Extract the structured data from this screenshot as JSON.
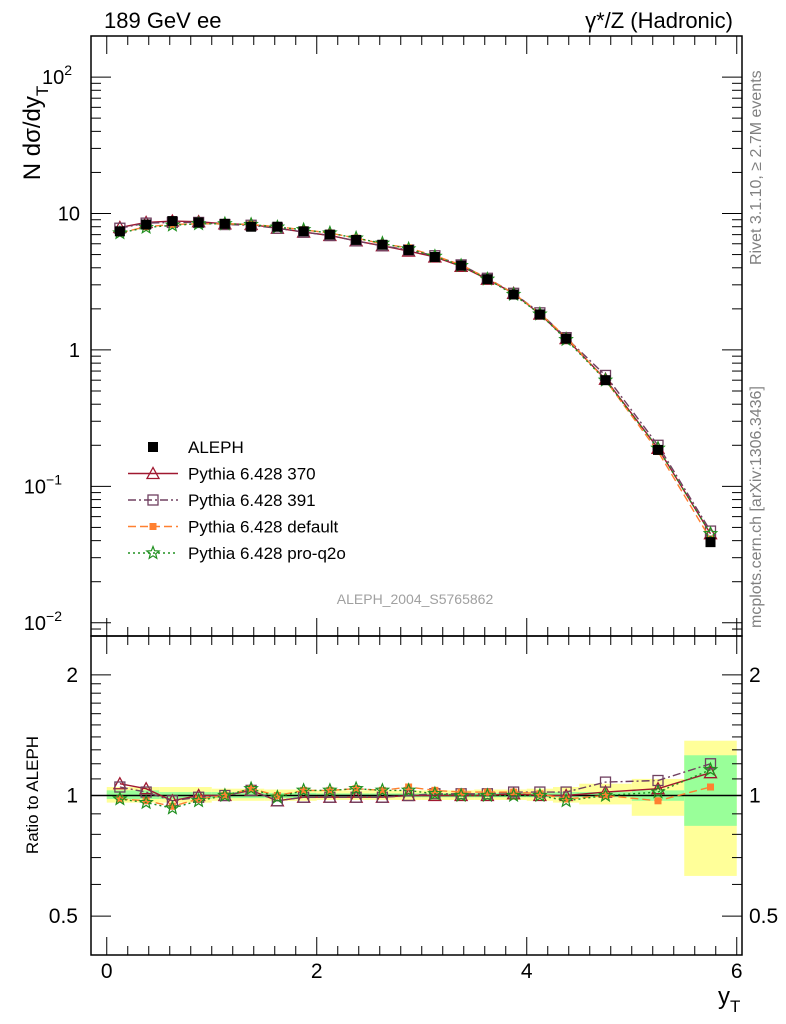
{
  "header": {
    "left": "189 GeV ee",
    "right": "γ*/Z (Hadronic)"
  },
  "side_text": {
    "rivet": "Rivet 3.1.10, ≥ 2.7M events",
    "mcplots": "mcplots.cern.ch [arXiv:1306.3436]"
  },
  "watermark": "ALEPH_2004_S5765862",
  "chart_data": [
    {
      "type": "line",
      "panel": "main",
      "ylabel": "N dσ/dy_T",
      "yscale": "log",
      "ylim": [
        0.008,
        200
      ],
      "xlim": [
        -0.15,
        6.05
      ],
      "y_ticks": [
        {
          "value": 0.01,
          "base": "10",
          "exp": "−2"
        },
        {
          "value": 0.1,
          "base": "10",
          "exp": "−1"
        },
        {
          "value": 1,
          "base": "1",
          "exp": ""
        },
        {
          "value": 10,
          "base": "10",
          "exp": ""
        },
        {
          "value": 100,
          "base": "10",
          "exp": "2"
        }
      ],
      "x": [
        0.125,
        0.375,
        0.625,
        0.875,
        1.125,
        1.375,
        1.625,
        1.875,
        2.125,
        2.375,
        2.625,
        2.875,
        3.125,
        3.375,
        3.625,
        3.875,
        4.125,
        4.375,
        4.75,
        5.25,
        5.75
      ],
      "series": [
        {
          "name": "ALEPH",
          "color": "#000000",
          "marker": "square-filled",
          "dash": "",
          "values": [
            7.4,
            8.3,
            8.8,
            8.6,
            8.4,
            8.0,
            8.0,
            7.4,
            7.0,
            6.4,
            5.9,
            5.4,
            4.8,
            4.15,
            3.3,
            2.55,
            1.82,
            1.21,
            0.6,
            0.185,
            0.039
          ]
        },
        {
          "name": "Pythia 6.428 370",
          "color": "#a01830",
          "marker": "triangle-open",
          "dash": "",
          "values": [
            7.9,
            8.6,
            8.8,
            8.7,
            8.4,
            8.3,
            7.8,
            7.3,
            6.9,
            6.3,
            5.8,
            5.3,
            4.8,
            4.1,
            3.3,
            2.6,
            1.83,
            1.21,
            0.61,
            0.19,
            0.045
          ]
        },
        {
          "name": "Pythia 6.428 391",
          "color": "#704060",
          "marker": "square-open",
          "dash": "8,3,2,3",
          "values": [
            7.8,
            8.5,
            8.6,
            8.6,
            8.3,
            8.2,
            7.8,
            7.3,
            6.9,
            6.3,
            5.8,
            5.4,
            4.9,
            4.2,
            3.35,
            2.6,
            1.87,
            1.23,
            0.65,
            0.2,
            0.047
          ]
        },
        {
          "name": "Pythia 6.428 default",
          "color": "#ff8030",
          "marker": "square-filled-small",
          "dash": "8,4",
          "values": [
            7.2,
            8.0,
            8.3,
            8.4,
            8.4,
            8.3,
            8.0,
            7.6,
            7.2,
            6.6,
            6.0,
            5.6,
            4.9,
            4.2,
            3.35,
            2.6,
            1.85,
            1.24,
            0.6,
            0.18,
            0.041
          ]
        },
        {
          "name": "Pythia 6.428 pro-q2o",
          "color": "#209020",
          "marker": "star",
          "dash": "2,3",
          "values": [
            7.2,
            7.9,
            8.2,
            8.4,
            8.4,
            8.3,
            7.95,
            7.6,
            7.2,
            6.6,
            6.05,
            5.5,
            4.85,
            4.15,
            3.3,
            2.55,
            1.83,
            1.19,
            0.6,
            0.19,
            0.045
          ]
        }
      ]
    },
    {
      "type": "line",
      "panel": "ratio",
      "ylabel": "Ratio to ALEPH",
      "xlabel": "y_T",
      "yscale": "log",
      "ylim": [
        0.4,
        2.5
      ],
      "xlim": [
        -0.15,
        6.05
      ],
      "x_ticks": [
        "0",
        "2",
        "4",
        "6"
      ],
      "y_ticks": [
        "0.5",
        "1",
        "2"
      ],
      "uncertainty_bands": {
        "x_edges": [
          0,
          0.25,
          0.5,
          0.75,
          1.0,
          1.25,
          1.5,
          1.75,
          2.0,
          2.25,
          2.5,
          2.75,
          3.0,
          3.25,
          3.5,
          3.75,
          4.0,
          4.25,
          4.5,
          5.0,
          5.5,
          6.0
        ],
        "stat_green": [
          [
            0.98,
            1.03
          ],
          [
            0.98,
            1.03
          ],
          [
            0.98,
            1.02
          ],
          [
            0.98,
            1.02
          ],
          [
            0.985,
            1.02
          ],
          [
            0.985,
            1.015
          ],
          [
            0.985,
            1.015
          ],
          [
            0.985,
            1.015
          ],
          [
            0.99,
            1.012
          ],
          [
            0.99,
            1.012
          ],
          [
            0.99,
            1.012
          ],
          [
            0.99,
            1.012
          ],
          [
            0.99,
            1.012
          ],
          [
            0.99,
            1.012
          ],
          [
            0.99,
            1.015
          ],
          [
            0.99,
            1.015
          ],
          [
            0.99,
            1.015
          ],
          [
            0.99,
            1.02
          ],
          [
            0.99,
            1.02
          ],
          [
            0.97,
            1.03
          ],
          [
            0.84,
            1.26
          ]
        ],
        "total_yellow": [
          [
            0.96,
            1.05
          ],
          [
            0.96,
            1.05
          ],
          [
            0.96,
            1.05
          ],
          [
            0.96,
            1.05
          ],
          [
            0.97,
            1.04
          ],
          [
            0.97,
            1.04
          ],
          [
            0.97,
            1.035
          ],
          [
            0.97,
            1.035
          ],
          [
            0.975,
            1.03
          ],
          [
            0.975,
            1.03
          ],
          [
            0.975,
            1.03
          ],
          [
            0.975,
            1.03
          ],
          [
            0.975,
            1.03
          ],
          [
            0.975,
            1.03
          ],
          [
            0.975,
            1.035
          ],
          [
            0.975,
            1.035
          ],
          [
            0.97,
            1.04
          ],
          [
            0.96,
            1.05
          ],
          [
            0.95,
            1.07
          ],
          [
            0.89,
            1.1
          ],
          [
            0.63,
            1.37
          ]
        ]
      },
      "x": [
        0.125,
        0.375,
        0.625,
        0.875,
        1.125,
        1.375,
        1.625,
        1.875,
        2.125,
        2.375,
        2.625,
        2.875,
        3.125,
        3.375,
        3.625,
        3.875,
        4.125,
        4.375,
        4.75,
        5.25,
        5.75
      ],
      "series": [
        {
          "name": "Pythia 6.428 370",
          "color": "#a01830",
          "marker": "triangle-open",
          "dash": "",
          "values": [
            1.07,
            1.04,
            0.97,
            1.0,
            1.0,
            1.03,
            0.97,
            0.99,
            0.99,
            0.99,
            0.99,
            1.0,
            1.0,
            1.0,
            1.0,
            1.01,
            1.0,
            1.0,
            1.02,
            1.04,
            1.14
          ]
        },
        {
          "name": "Pythia 6.428 391",
          "color": "#704060",
          "marker": "square-open",
          "dash": "8,3,2,3",
          "values": [
            1.05,
            1.02,
            0.97,
            0.99,
            1.0,
            1.03,
            0.97,
            0.99,
            0.99,
            0.99,
            0.99,
            1.0,
            1.01,
            1.01,
            1.01,
            1.02,
            1.02,
            1.02,
            1.08,
            1.09,
            1.2
          ]
        },
        {
          "name": "Pythia 6.428 default",
          "color": "#ff8030",
          "marker": "square-filled-small",
          "dash": "8,4",
          "values": [
            0.98,
            0.97,
            0.94,
            0.98,
            1.0,
            1.04,
            1.0,
            1.03,
            1.03,
            1.04,
            1.03,
            1.05,
            1.03,
            1.02,
            1.02,
            1.02,
            1.01,
            0.98,
            1.0,
            0.97,
            1.05
          ]
        },
        {
          "name": "Pythia 6.428 pro-q2o",
          "color": "#209020",
          "marker": "star",
          "dash": "2,3",
          "values": [
            0.98,
            0.96,
            0.93,
            0.97,
            1.0,
            1.04,
            0.99,
            1.03,
            1.03,
            1.04,
            1.03,
            1.03,
            1.01,
            1.0,
            1.0,
            1.0,
            1.0,
            0.97,
            1.0,
            1.02,
            1.16
          ]
        }
      ]
    }
  ]
}
